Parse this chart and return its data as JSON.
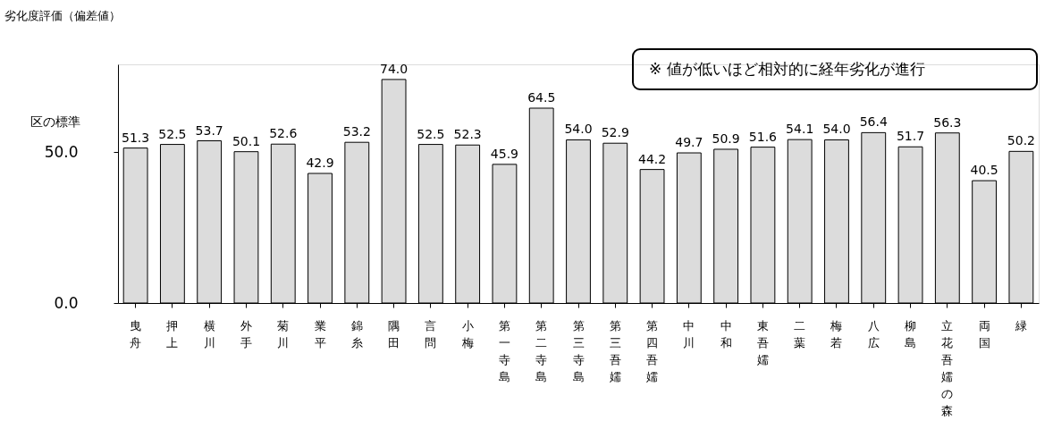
{
  "chart_data": {
    "type": "bar",
    "ylabel": "劣化度評価（偏差値）",
    "categories": [
      "曳舟",
      "押上",
      "横川",
      "外手",
      "菊川",
      "業平",
      "錦糸",
      "隅田",
      "言問",
      "小梅",
      "第一寺島",
      "第二寺島",
      "第三寺島",
      "第三吾嬬",
      "第四吾嬬",
      "中川",
      "中和",
      "東吾嬬",
      "二葉",
      "梅若",
      "八広",
      "柳島",
      "立花吾嬬の森",
      "両国",
      "緑"
    ],
    "values": [
      51.3,
      52.5,
      53.7,
      50.1,
      52.6,
      42.9,
      53.2,
      74.0,
      52.5,
      52.3,
      45.9,
      64.5,
      54.0,
      52.9,
      44.2,
      49.7,
      50.9,
      51.6,
      54.1,
      54.0,
      56.4,
      51.7,
      56.3,
      40.5,
      50.2
    ],
    "color": "#dcdcdc",
    "ylim": [
      0,
      79
    ],
    "yticks": [
      {
        "value": 0,
        "label": "0.0"
      },
      {
        "value": 50,
        "label": "50.0"
      }
    ],
    "value_labels": [
      "51.3",
      "52.5",
      "53.7",
      "50.1",
      "52.6",
      "42.9",
      "53.2",
      "74.0",
      "52.5",
      "52.3",
      "45.9",
      "64.5",
      "54.0",
      "52.9",
      "44.2",
      "49.7",
      "50.9",
      "51.6",
      "54.1",
      "54.0",
      "56.4",
      "51.7",
      "56.3",
      "40.5",
      "50.2"
    ],
    "grid": false,
    "annotations": [
      "区の標準",
      "※ 値が低いほど相対的に経年劣化が進行"
    ]
  }
}
